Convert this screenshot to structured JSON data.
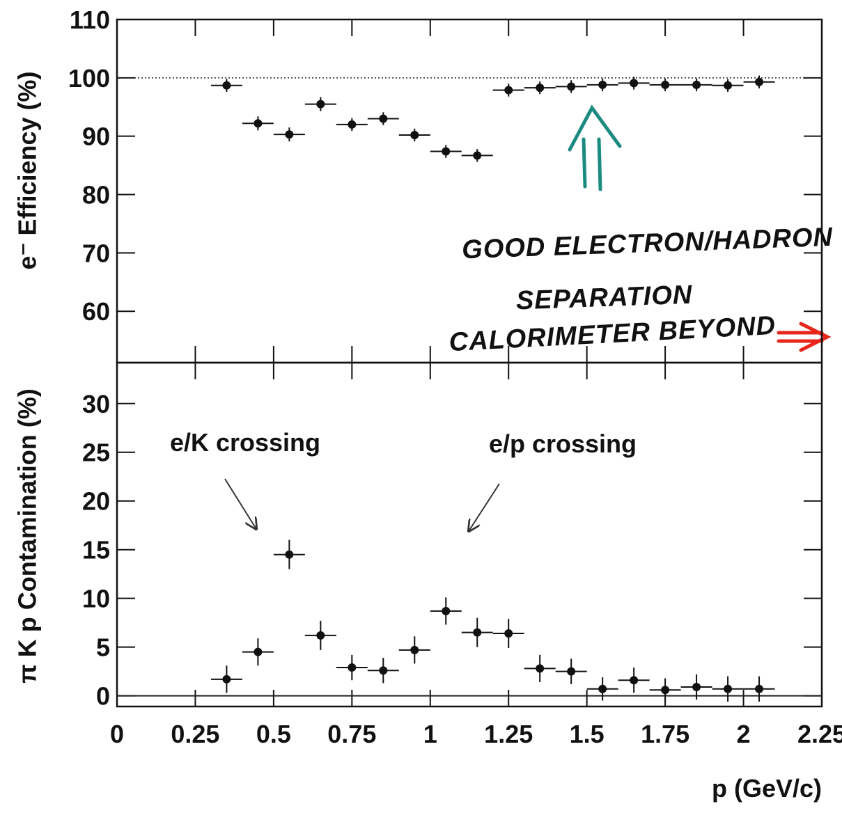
{
  "chart_data": [
    {
      "type": "scatter",
      "ylabel": "e⁻ Efficiency (%)",
      "x": [
        0.35,
        0.45,
        0.55,
        0.65,
        0.75,
        0.85,
        0.95,
        1.05,
        1.15,
        1.25,
        1.35,
        1.45,
        1.55,
        1.65,
        1.75,
        1.85,
        1.95,
        2.05
      ],
      "values": [
        98.7,
        92.2,
        90.3,
        95.5,
        92.0,
        93.0,
        90.2,
        87.4,
        86.7,
        97.9,
        98.3,
        98.5,
        98.8,
        99.1,
        98.8,
        98.8,
        98.7,
        99.3
      ],
      "errors": [
        1.1,
        1.2,
        1.2,
        1.2,
        1.1,
        1.1,
        1.1,
        1.1,
        1.1,
        1.1,
        1.1,
        1.1,
        1.1,
        1.1,
        1.1,
        1.1,
        1.1,
        1.1
      ],
      "xerr": 0.05,
      "color": "#111111",
      "xlim": [
        0,
        2.25
      ],
      "xticks": [
        0,
        0.25,
        0.5,
        0.75,
        1,
        1.25,
        1.5,
        1.75,
        2,
        2.25
      ],
      "ylim": [
        51.2,
        110
      ],
      "yticks": [
        60,
        70,
        80,
        90,
        100,
        110
      ],
      "reference_line": 100,
      "annotations": [
        {
          "text": "GOOD ELECTRON/HADRON",
          "color": "#1b8b82"
        },
        {
          "text": "SEPARATION",
          "color": "#1b8b82"
        },
        {
          "text": "CALORIMETER BEYOND",
          "color": "#e8261c"
        }
      ]
    },
    {
      "type": "scatter",
      "ylabel": "π K p Contamination (%)",
      "xlabel": "p (GeV/c)",
      "x": [
        0.35,
        0.45,
        0.55,
        0.65,
        0.75,
        0.85,
        0.95,
        1.05,
        1.15,
        1.25,
        1.35,
        1.45,
        1.55,
        1.65,
        1.75,
        1.85,
        1.95,
        2.05
      ],
      "values": [
        1.7,
        4.5,
        14.5,
        6.2,
        2.9,
        2.6,
        4.7,
        8.7,
        6.5,
        6.4,
        2.8,
        2.5,
        0.7,
        1.6,
        0.6,
        0.9,
        0.7,
        0.7
      ],
      "errors": [
        1.4,
        1.4,
        1.5,
        1.5,
        1.3,
        1.3,
        1.4,
        1.4,
        1.5,
        1.5,
        1.4,
        1.3,
        1.2,
        1.3,
        1.2,
        1.3,
        1.3,
        1.3
      ],
      "xerr": 0.05,
      "color": "#111111",
      "xlim": [
        0,
        2.25
      ],
      "xticks": [
        0,
        0.25,
        0.5,
        0.75,
        1,
        1.25,
        1.5,
        1.75,
        2,
        2.25
      ],
      "ylim": [
        -1.1,
        34.2
      ],
      "yticks": [
        0,
        5,
        10,
        15,
        20,
        25,
        30
      ],
      "reference_line": 0,
      "annotations": [
        {
          "text": "e/K crossing",
          "color": "#222222"
        },
        {
          "text": "e/p crossing",
          "color": "#222222"
        }
      ]
    }
  ]
}
